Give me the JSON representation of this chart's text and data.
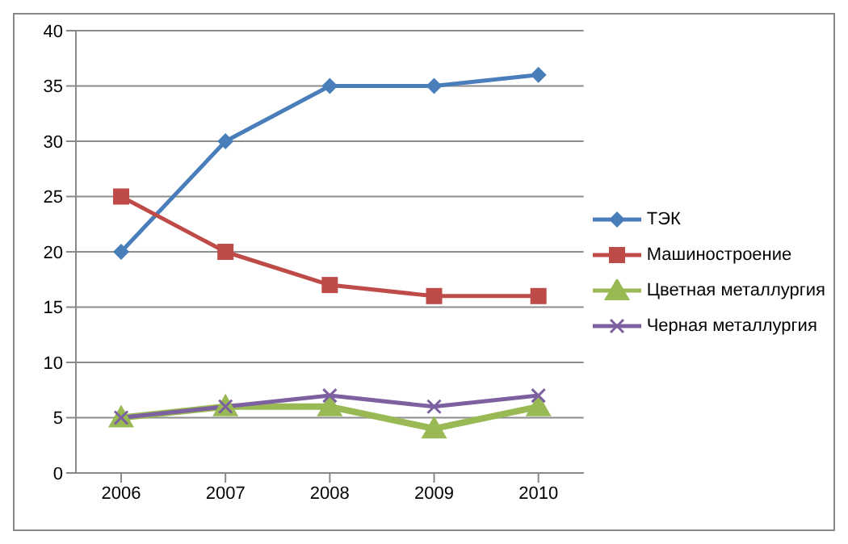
{
  "chart_data": {
    "type": "line",
    "categories": [
      "2006",
      "2007",
      "2008",
      "2009",
      "2010"
    ],
    "series": [
      {
        "name": "ТЭК",
        "color": "#4a7ebb",
        "marker": "diamond",
        "values": [
          20,
          30,
          35,
          35,
          36
        ]
      },
      {
        "name": "Машиностроение",
        "color": "#be4b48",
        "marker": "square",
        "values": [
          25,
          20,
          17,
          16,
          16
        ]
      },
      {
        "name": "Цветная металлургия",
        "color": "#98b954",
        "marker": "triangle",
        "values": [
          5,
          6,
          6,
          4,
          6
        ]
      },
      {
        "name": "Черная металлургия",
        "color": "#7d60a0",
        "marker": "cross",
        "values": [
          5,
          6,
          7,
          6,
          7
        ]
      }
    ],
    "ylim": [
      0,
      40
    ],
    "yticks": [
      0,
      5,
      10,
      15,
      20,
      25,
      30,
      35,
      40
    ],
    "grid": "y",
    "legend": "right",
    "line_style": "solid"
  }
}
